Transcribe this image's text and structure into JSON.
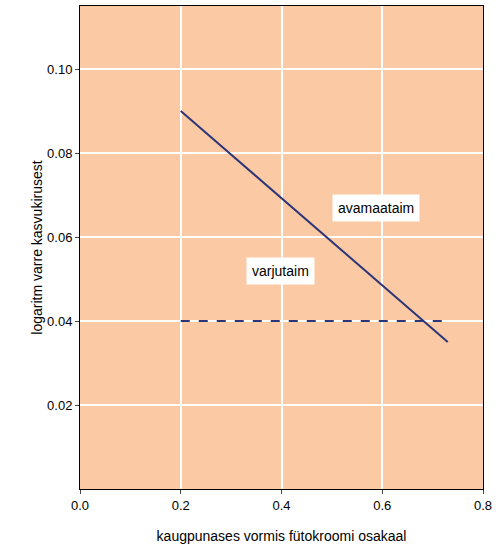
{
  "chart_data": {
    "type": "line",
    "x_label": "kaugpunases vormis fütokroomi osakaal",
    "y_label": "logaritm varre kasvukirusest",
    "series": [
      {
        "name": "avamaataim",
        "color": "#2b3577",
        "line_style": "solid",
        "x": [
          0.2,
          0.73
        ],
        "values": [
          0.09,
          0.035
        ]
      },
      {
        "name": "varjutaim",
        "color": "#2b3577",
        "line_style": "dashed",
        "x": [
          0.2,
          0.73
        ],
        "values": [
          0.04,
          0.04
        ]
      }
    ],
    "annotations": [
      {
        "text": "avamaataim",
        "x": 0.5,
        "y": 0.067
      },
      {
        "text": "varjutaim",
        "x": 0.33,
        "y": 0.052
      }
    ],
    "xlim": [
      0,
      0.8
    ],
    "xticks": [
      {
        "value": 0,
        "label": "0.0"
      },
      0.2,
      0.4,
      0.6,
      0.8
    ],
    "ylim": [
      0,
      0.115
    ],
    "yticks": [
      0.02,
      0.04,
      0.06,
      0.08,
      {
        "value": 0.1,
        "label": "0.10"
      }
    ],
    "grid": true
  }
}
